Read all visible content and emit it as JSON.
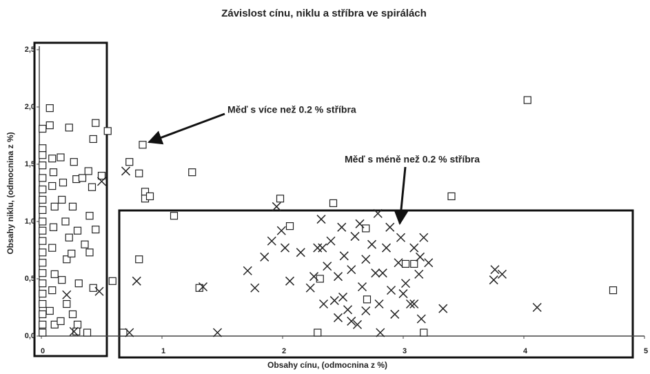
{
  "chart_data": {
    "type": "scatter",
    "title": "Závislost cínu, niklu a stříbra ve spirálách",
    "x_label": "Obsahy cínu, (odmocnina z %)",
    "y_label": "Obsahy niklu, (odmocnina z %)",
    "annotations": [
      "Měď s více než 0.2 % stříbra",
      "Měď s méně než 0.2 % stříbra"
    ],
    "xlim": [
      0,
      5
    ],
    "xticks": [
      0,
      1,
      2,
      3,
      4,
      5
    ],
    "ylim": [
      0,
      2.5
    ],
    "yticks": [
      {
        "value": 0,
        "label": "0,0"
      },
      {
        "value": 0.5,
        "label": "0,5"
      },
      {
        "value": 1,
        "label": "1,0"
      },
      {
        "value": 1.5,
        "label": "1,5"
      },
      {
        "value": 2,
        "label": "2,0"
      },
      {
        "value": 2.5,
        "label": "2,5"
      }
    ],
    "grid": false,
    "series": [
      {
        "marker": "square",
        "color": "#222222",
        "x": [
          0.07,
          0.01,
          0.07,
          0.23,
          0.45,
          0.55,
          0.43,
          0.84,
          0.73,
          0.81,
          1.25,
          0.86,
          0.86,
          0.9,
          1.98,
          2.42,
          3.4,
          4.03,
          1.1,
          2.06,
          2.69,
          0.81,
          0.59,
          1.31,
          2.31,
          2.7,
          3.02,
          3.09,
          4.74,
          2.29,
          3.17,
          0.68,
          0.01,
          0.01,
          0.01,
          0.01,
          0.01,
          0.01,
          0.01,
          0.01,
          0.01,
          0.01,
          0.01,
          0.01,
          0.01,
          0.01,
          0.01,
          0.01,
          0.01,
          0.01,
          0.01,
          0.09,
          0.1,
          0.09,
          0.11,
          0.1,
          0.09,
          0.11,
          0.09,
          0.07,
          0.11,
          0.16,
          0.18,
          0.17,
          0.2,
          0.23,
          0.21,
          0.17,
          0.21,
          0.16,
          0.27,
          0.29,
          0.26,
          0.3,
          0.25,
          0.31,
          0.26,
          0.29,
          0.34,
          0.39,
          0.42,
          0.4,
          0.45,
          0.36,
          0.4,
          0.43,
          0.3,
          0.38,
          0.5
        ],
        "y": [
          1.99,
          1.81,
          1.84,
          1.82,
          1.86,
          1.79,
          1.72,
          1.67,
          1.52,
          1.42,
          1.43,
          1.26,
          1.2,
          1.22,
          1.2,
          1.16,
          1.22,
          2.06,
          1.05,
          0.96,
          0.94,
          0.67,
          0.48,
          0.42,
          0.5,
          0.32,
          0.63,
          0.63,
          0.4,
          0.03,
          0.03,
          0.03,
          1.64,
          1.58,
          1.49,
          1.38,
          1.28,
          1.19,
          1.1,
          1.0,
          0.92,
          0.83,
          0.73,
          0.64,
          0.55,
          0.46,
          0.37,
          0.28,
          0.19,
          0.1,
          0.03,
          1.55,
          1.43,
          1.31,
          1.13,
          0.95,
          0.77,
          0.54,
          0.4,
          0.22,
          0.1,
          1.56,
          1.34,
          1.19,
          1.0,
          0.86,
          0.67,
          0.49,
          0.28,
          0.13,
          1.52,
          1.37,
          1.13,
          0.92,
          0.72,
          0.46,
          0.19,
          0.04,
          1.38,
          1.44,
          1.3,
          1.05,
          0.93,
          0.8,
          0.73,
          0.42,
          0.1,
          0.03,
          1.4
        ]
      },
      {
        "marker": "cross",
        "color": "#222222",
        "x": [
          0.7,
          0.5,
          0.48,
          0.21,
          0.27,
          0.79,
          0.73,
          1.34,
          1.46,
          1.71,
          1.77,
          1.85,
          1.91,
          1.95,
          1.99,
          2.02,
          2.06,
          2.15,
          2.23,
          2.32,
          2.33,
          2.37,
          2.4,
          2.43,
          2.46,
          2.49,
          2.51,
          2.54,
          2.57,
          2.6,
          2.62,
          2.64,
          2.66,
          2.69,
          2.74,
          2.79,
          2.8,
          2.81,
          2.83,
          2.86,
          2.89,
          2.9,
          2.93,
          2.96,
          2.98,
          3.02,
          3.06,
          3.09,
          3.13,
          3.15,
          3.17,
          3.21,
          3.33,
          3.76,
          3.75,
          3.82,
          4.11,
          2.29,
          2.26,
          2.46,
          2.57,
          2.77,
          3.0,
          3.09,
          2.34,
          3.14,
          2.69,
          2.5
        ],
        "y": [
          1.44,
          1.35,
          0.39,
          0.36,
          0.04,
          0.48,
          0.03,
          0.43,
          0.03,
          0.57,
          0.42,
          0.69,
          0.83,
          1.13,
          0.92,
          0.77,
          0.48,
          0.73,
          0.42,
          1.02,
          0.77,
          0.61,
          0.83,
          0.31,
          0.52,
          0.95,
          0.7,
          0.23,
          0.58,
          0.87,
          0.1,
          0.98,
          0.43,
          0.67,
          0.8,
          1.07,
          0.28,
          0.03,
          0.55,
          0.77,
          0.95,
          0.4,
          0.19,
          0.64,
          0.86,
          0.46,
          0.28,
          0.77,
          0.54,
          0.15,
          0.86,
          0.64,
          0.24,
          0.58,
          0.49,
          0.54,
          0.25,
          0.77,
          0.52,
          0.16,
          0.13,
          0.55,
          0.37,
          0.28,
          0.28,
          0.69,
          0.22,
          0.34
        ]
      }
    ]
  }
}
